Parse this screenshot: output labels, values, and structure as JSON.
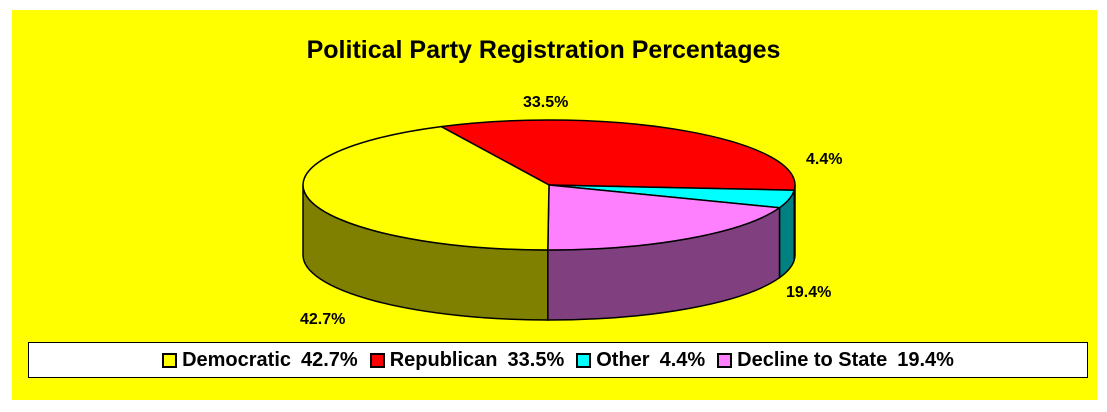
{
  "chart_data": {
    "type": "pie",
    "title": "Political Party Registration Percentages",
    "three_d": true,
    "categories": [
      "Democratic",
      "Republican",
      "Other",
      "Decline to State"
    ],
    "values": [
      42.7,
      33.5,
      4.4,
      19.4
    ],
    "data_labels": [
      "42.7%",
      "33.5%",
      "4.4%",
      "19.4%"
    ],
    "colors": [
      "#ffff00",
      "#ff0000",
      "#00ffff",
      "#ff80ff"
    ],
    "side_colors": [
      "#808000",
      "#800000",
      "#008080",
      "#804080"
    ],
    "background_color": "#ffff00",
    "legend_position": "bottom",
    "legend": [
      {
        "name": "Democratic",
        "value": "42.7%"
      },
      {
        "name": "Republican",
        "value": "33.5%"
      },
      {
        "name": "Other",
        "value": "4.4%"
      },
      {
        "name": "Decline to State",
        "value": "19.4%"
      }
    ]
  }
}
